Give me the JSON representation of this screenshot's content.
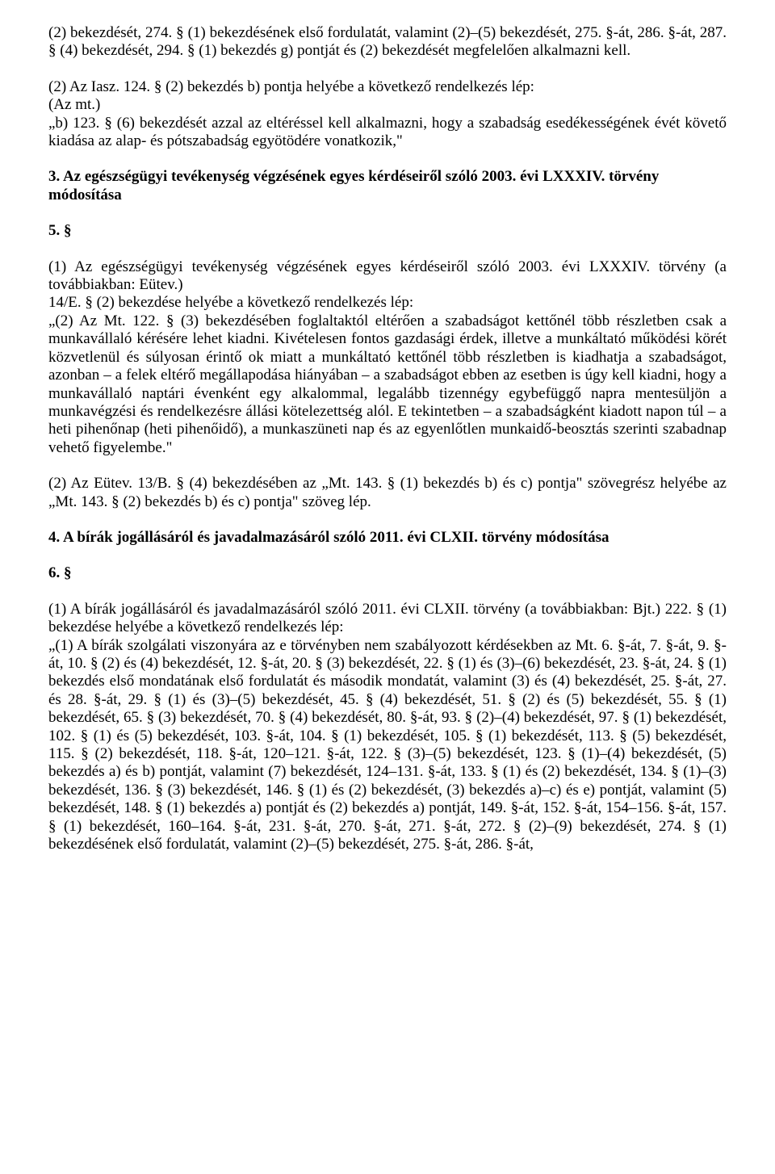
{
  "p1": "(2) bekezdését, 274. § (1) bekezdésének első fordulatát, valamint (2)–(5) bekezdését, 275. §-át, 286. §-át, 287. § (4) bekezdését, 294. § (1) bekezdés g) pontját és (2) bekezdését megfelelően alkalmazni kell.",
  "p2": "(2) Az Iasz. 124. § (2) bekezdés b) pontja helyébe a következő rendelkezés lép:\n(Az mt.)\n„b) 123. § (6) bekezdését azzal az eltéréssel kell alkalmazni, hogy a szabadság esedékességének évét követő kiadása az alap- és pótszabadság egyötödére vonatkozik,\"",
  "h1": "3. Az egészségügyi tevékenység végzésének egyes kérdéseiről szóló 2003. évi LXXXIV. törvény módosítása",
  "s5": "5. §",
  "p3": "(1) Az egészségügyi tevékenység végzésének egyes kérdéseiről szóló 2003. évi LXXXIV. törvény (a továbbiakban: Eütev.)\n14/E. § (2) bekezdése helyébe a következő rendelkezés lép:\n„(2) Az  Mt. 122.  § (3)  bekezdésében foglaltaktól eltérően a  szabadságot kettőnél több részletben csak a  munkavállaló kérésére lehet kiadni. Kivételesen fontos gazdasági érdek, illetve a  munkáltató működési körét közvetlenül és súlyosan érintő ok miatt a munkáltató kettőnél több részletben is kiadhatja a szabadságot, azonban – a felek eltérő megállapodása hiányában – a szabadságot ebben az esetben is úgy kell kiadni, hogy a munkavállaló naptári évenként egy alkalommal, legalább tizennégy egybefüggő napra mentesüljön a  munkavégzési és rendelkezésre állási kötelezettség alól. E tekintetben – a szabadságként kiadott napon túl – a heti pihenőnap (heti pihenőidő), a munkaszüneti nap és az egyenlőtlen munkaidő-beosztás szerinti szabadnap vehető figyelembe.\"",
  "p4": "(2) Az  Eütev. 13/B.  § (4)  bekezdésében az „Mt. 143.  § (1)  bekezdés b) és c)  pontja\" szövegrész helyébe az „Mt. 143.  § (2) bekezdés b) és c) pontja\" szöveg lép.",
  "h2": "4. A bírák jogállásáról és javadalmazásáról szóló 2011. évi CLXII. törvény módosítása",
  "s6": "6. §",
  "p5": "(1) A  bírák jogállásáról és javadalmazásáról szóló 2011. évi CLXII. törvény (a  továbbiakban: Bjt.) 222.  § (1)  bekezdése helyébe a következő rendelkezés lép:\n„(1) A bírák szolgálati viszonyára az e törvényben nem szabályozott kérdésekben az Mt. 6. §-át, 7. §-át, 9. §-át, 10. § (2) és (4) bekezdését, 12. §-át, 20. § (3) bekezdését, 22. § (1) és (3)–(6) bekezdését, 23. §-át, 24. § (1) bekezdés első mondatának első fordulatát és második mondatát, valamint (3) és (4) bekezdését, 25. §-át, 27. és 28. §-át, 29. § (1) és (3)–(5) bekezdését, 45. § (4) bekezdését, 51. § (2) és (5) bekezdését, 55. § (1) bekezdését, 65. § (3) bekezdését, 70. § (4) bekezdését, 80. §-át, 93. § (2)–(4) bekezdését, 97. § (1) bekezdését, 102. § (1) és (5) bekezdését, 103. §-át, 104. § (1) bekezdését, 105. § (1) bekezdését, 113. § (5) bekezdését, 115. § (2) bekezdését, 118. §-át, 120–121. §-át, 122. § (3)–(5) bekezdését, 123. § (1)–(4) bekezdését, (5) bekezdés a) és b) pontját, valamint (7) bekezdését, 124–131. §-át, 133. § (1) és (2) bekezdését, 134. § (1)–(3) bekezdését, 136. § (3) bekezdését, 146. § (1) és (2) bekezdését, (3) bekezdés a)–c) és e) pontját, valamint (5) bekezdését, 148. § (1) bekezdés a) pontját és (2) bekezdés a) pontját, 149. §-át, 152. §-át, 154–156. §-át, 157. § (1) bekezdését, 160–164. §-át, 231. §-át, 270. §-át, 271. §-át, 272. § (2)–(9) bekezdését, 274. § (1) bekezdésének első fordulatát, valamint (2)–(5) bekezdését, 275. §-át, 286. §-át,"
}
